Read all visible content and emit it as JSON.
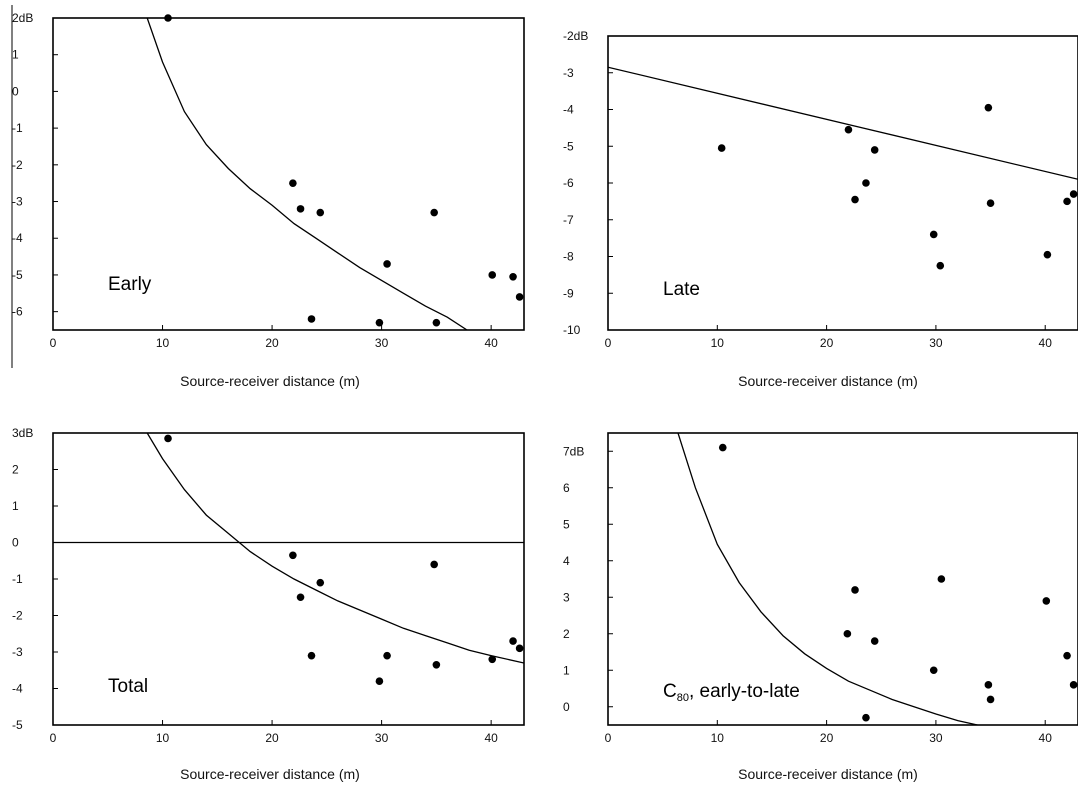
{
  "chart_data": [
    {
      "id": "early",
      "type": "scatter",
      "panel_label": "Early",
      "xlabel": "Source-receiver distance (m)",
      "ylabel": "",
      "xlim": [
        0,
        43
      ],
      "ylim": [
        -6.5,
        2
      ],
      "x_ticks": [
        0,
        10,
        20,
        30,
        40
      ],
      "y_ticks": [
        2,
        1,
        0,
        -1,
        -2,
        -3,
        -4,
        -5,
        -6
      ],
      "y_tick_labels": [
        "2dB",
        "1",
        "0",
        "-1",
        "-2",
        "-3",
        "-4",
        "-5",
        "-6"
      ],
      "points": [
        {
          "x": 10.5,
          "y": 2.0
        },
        {
          "x": 21.9,
          "y": -2.5
        },
        {
          "x": 22.6,
          "y": -3.2
        },
        {
          "x": 24.4,
          "y": -3.3
        },
        {
          "x": 23.6,
          "y": -6.2
        },
        {
          "x": 29.8,
          "y": -6.3
        },
        {
          "x": 30.5,
          "y": -4.7
        },
        {
          "x": 34.8,
          "y": -3.3
        },
        {
          "x": 35.0,
          "y": -6.3
        },
        {
          "x": 40.1,
          "y": -5.0
        },
        {
          "x": 42.0,
          "y": -5.05
        },
        {
          "x": 42.6,
          "y": -5.6
        }
      ],
      "curve": [
        {
          "x": 8.6,
          "y": 2.0
        },
        {
          "x": 10,
          "y": 0.8
        },
        {
          "x": 12,
          "y": -0.55
        },
        {
          "x": 14,
          "y": -1.45
        },
        {
          "x": 16,
          "y": -2.1
        },
        {
          "x": 18,
          "y": -2.65
        },
        {
          "x": 20,
          "y": -3.1
        },
        {
          "x": 22,
          "y": -3.6
        },
        {
          "x": 24,
          "y": -4.0
        },
        {
          "x": 26,
          "y": -4.4
        },
        {
          "x": 28,
          "y": -4.8
        },
        {
          "x": 30,
          "y": -5.15
        },
        {
          "x": 32,
          "y": -5.5
        },
        {
          "x": 34,
          "y": -5.85
        },
        {
          "x": 36,
          "y": -6.15
        },
        {
          "x": 37.8,
          "y": -6.5
        }
      ]
    },
    {
      "id": "late",
      "type": "scatter",
      "panel_label": "Late",
      "xlabel": "Source-receiver distance (m)",
      "ylabel": "",
      "xlim": [
        0,
        43
      ],
      "ylim": [
        -10,
        -2
      ],
      "x_ticks": [
        0,
        10,
        20,
        30,
        40
      ],
      "y_ticks": [
        -2,
        -3,
        -4,
        -5,
        -6,
        -7,
        -8,
        -9,
        -10
      ],
      "y_tick_labels": [
        "-2dB",
        "-3",
        "-4",
        "-5",
        "-6",
        "-7",
        "-8",
        "-9",
        "-10"
      ],
      "points": [
        {
          "x": 10.4,
          "y": -5.05
        },
        {
          "x": 22.0,
          "y": -4.55
        },
        {
          "x": 22.6,
          "y": -6.45
        },
        {
          "x": 23.6,
          "y": -6.0
        },
        {
          "x": 24.4,
          "y": -5.1
        },
        {
          "x": 29.8,
          "y": -7.4
        },
        {
          "x": 30.4,
          "y": -8.25
        },
        {
          "x": 34.8,
          "y": -3.95
        },
        {
          "x": 35.0,
          "y": -6.55
        },
        {
          "x": 40.2,
          "y": -7.95
        },
        {
          "x": 42.0,
          "y": -6.5
        },
        {
          "x": 42.6,
          "y": -6.3
        }
      ],
      "curve": [
        {
          "x": 0,
          "y": -2.85
        },
        {
          "x": 43,
          "y": -5.9
        }
      ]
    },
    {
      "id": "total",
      "type": "scatter",
      "panel_label": "Total",
      "xlabel": "Source-receiver distance (m)",
      "ylabel": "",
      "xlim": [
        0,
        43
      ],
      "ylim": [
        -5,
        3
      ],
      "x_ticks": [
        0,
        10,
        20,
        30,
        40
      ],
      "y_ticks": [
        3,
        2,
        1,
        0,
        -1,
        -2,
        -3,
        -4,
        -5
      ],
      "y_tick_labels": [
        "3dB",
        "2",
        "1",
        "0",
        "-1",
        "-2",
        "-3",
        "-4",
        "-5"
      ],
      "points": [
        {
          "x": 10.5,
          "y": 2.85
        },
        {
          "x": 21.9,
          "y": -0.35
        },
        {
          "x": 22.6,
          "y": -1.5
        },
        {
          "x": 24.4,
          "y": -1.1
        },
        {
          "x": 23.6,
          "y": -3.1
        },
        {
          "x": 29.8,
          "y": -3.8
        },
        {
          "x": 30.5,
          "y": -3.1
        },
        {
          "x": 34.8,
          "y": -0.6
        },
        {
          "x": 35.0,
          "y": -3.35
        },
        {
          "x": 40.1,
          "y": -3.2
        },
        {
          "x": 42.0,
          "y": -2.7
        },
        {
          "x": 42.6,
          "y": -2.9
        }
      ],
      "reference_line_y": 0,
      "curve": [
        {
          "x": 8.6,
          "y": 3.0
        },
        {
          "x": 10,
          "y": 2.3
        },
        {
          "x": 12,
          "y": 1.45
        },
        {
          "x": 14,
          "y": 0.75
        },
        {
          "x": 16,
          "y": 0.25
        },
        {
          "x": 18,
          "y": -0.25
        },
        {
          "x": 20,
          "y": -0.65
        },
        {
          "x": 22,
          "y": -1.0
        },
        {
          "x": 24,
          "y": -1.3
        },
        {
          "x": 26,
          "y": -1.6
        },
        {
          "x": 28,
          "y": -1.85
        },
        {
          "x": 30,
          "y": -2.1
        },
        {
          "x": 32,
          "y": -2.35
        },
        {
          "x": 34,
          "y": -2.55
        },
        {
          "x": 36,
          "y": -2.75
        },
        {
          "x": 38,
          "y": -2.95
        },
        {
          "x": 40,
          "y": -3.1
        },
        {
          "x": 43,
          "y": -3.3
        }
      ]
    },
    {
      "id": "c80",
      "type": "scatter",
      "panel_label": "C",
      "panel_label_sub": "80",
      "panel_label_suffix": ", early-to-late",
      "xlabel": "Source-receiver distance (m)",
      "ylabel": "",
      "xlim": [
        0,
        43
      ],
      "ylim": [
        -0.5,
        7.5
      ],
      "x_ticks": [
        0,
        10,
        20,
        30,
        40
      ],
      "y_ticks": [
        7,
        6,
        5,
        4,
        3,
        2,
        1,
        0
      ],
      "y_tick_labels": [
        "7dB",
        "6",
        "5",
        "4",
        "3",
        "2",
        "1",
        "0"
      ],
      "points": [
        {
          "x": 10.5,
          "y": 7.1
        },
        {
          "x": 21.9,
          "y": 2.0
        },
        {
          "x": 22.6,
          "y": 3.2
        },
        {
          "x": 24.4,
          "y": 1.8
        },
        {
          "x": 23.6,
          "y": -0.3
        },
        {
          "x": 29.8,
          "y": 1.0
        },
        {
          "x": 30.5,
          "y": 3.5
        },
        {
          "x": 34.8,
          "y": 0.6
        },
        {
          "x": 35.0,
          "y": 0.2
        },
        {
          "x": 40.1,
          "y": 2.9
        },
        {
          "x": 42.0,
          "y": 1.4
        },
        {
          "x": 42.6,
          "y": 0.6
        }
      ],
      "curve": [
        {
          "x": 6.4,
          "y": 7.5
        },
        {
          "x": 8,
          "y": 6.0
        },
        {
          "x": 10,
          "y": 4.45
        },
        {
          "x": 12,
          "y": 3.4
        },
        {
          "x": 14,
          "y": 2.6
        },
        {
          "x": 16,
          "y": 1.95
        },
        {
          "x": 18,
          "y": 1.45
        },
        {
          "x": 20,
          "y": 1.05
        },
        {
          "x": 22,
          "y": 0.7
        },
        {
          "x": 24,
          "y": 0.45
        },
        {
          "x": 26,
          "y": 0.2
        },
        {
          "x": 28,
          "y": 0.0
        },
        {
          "x": 30,
          "y": -0.2
        },
        {
          "x": 32,
          "y": -0.38
        },
        {
          "x": 33.8,
          "y": -0.5
        }
      ]
    }
  ]
}
